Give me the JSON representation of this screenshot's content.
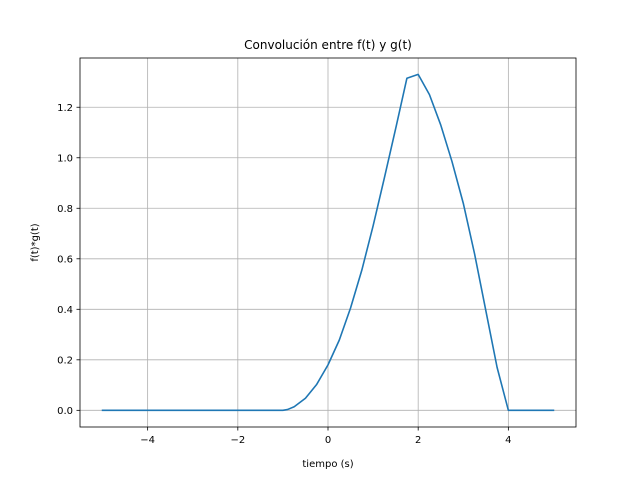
{
  "chart_data": {
    "type": "line",
    "title": "Convolución entre f(t) y g(t)",
    "xlabel": "tiempo (s)",
    "ylabel": "f(t)*g(t)",
    "xlim": [
      -5.5,
      5.5
    ],
    "ylim": [
      -0.066,
      1.395
    ],
    "xticks": [
      -4,
      -2,
      0,
      2,
      4
    ],
    "xtick_labels": [
      "−4",
      "−2",
      "0",
      "2",
      "4"
    ],
    "yticks": [
      0.0,
      0.2,
      0.4,
      0.6,
      0.8,
      1.0,
      1.2
    ],
    "ytick_labels": [
      "0.0",
      "0.2",
      "0.4",
      "0.6",
      "0.8",
      "1.0",
      "1.2"
    ],
    "grid": true,
    "series": [
      {
        "color": "#1f77b4",
        "x": [
          -5.0,
          -4.0,
          -3.0,
          -2.0,
          -1.0,
          -0.9,
          -0.75,
          -0.5,
          -0.25,
          0.0,
          0.25,
          0.5,
          0.75,
          1.0,
          1.25,
          1.5,
          1.75,
          2.0,
          2.25,
          2.5,
          2.75,
          3.0,
          3.25,
          3.5,
          3.75,
          4.0,
          4.5,
          5.0
        ],
        "y": [
          0.0,
          0.0,
          0.0,
          0.0,
          0.0,
          0.003,
          0.014,
          0.048,
          0.103,
          0.18,
          0.278,
          0.405,
          0.555,
          0.73,
          0.92,
          1.115,
          1.315,
          1.33,
          1.25,
          1.13,
          0.985,
          0.82,
          0.62,
          0.395,
          0.17,
          0.0,
          0.0,
          0.0
        ]
      }
    ]
  }
}
